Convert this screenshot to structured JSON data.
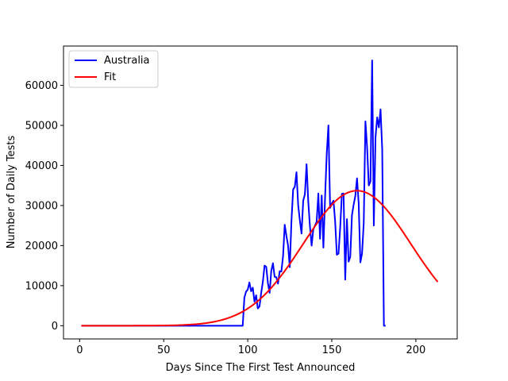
{
  "chart_data": {
    "type": "line",
    "xlabel": "Days Since The First Test Announced",
    "ylabel": "Number of Daily Tests",
    "xlim": [
      -9.6,
      224.6
    ],
    "ylim": [
      -3300,
      69800
    ],
    "xticks": [
      0,
      50,
      100,
      150,
      200
    ],
    "yticks": [
      0,
      10000,
      20000,
      30000,
      40000,
      50000,
      60000
    ],
    "grid": false,
    "legend_position": "top-left",
    "series": [
      {
        "name": "Australia",
        "color": "#0000ff",
        "points": [
          [
            1,
            0
          ],
          [
            50,
            0
          ],
          [
            97,
            0
          ],
          [
            98,
            7000
          ],
          [
            99,
            8500
          ],
          [
            100,
            9000
          ],
          [
            101,
            10800
          ],
          [
            102,
            8600
          ],
          [
            103,
            9500
          ],
          [
            104,
            6000
          ],
          [
            105,
            7600
          ],
          [
            106,
            4300
          ],
          [
            107,
            4800
          ],
          [
            108,
            8200
          ],
          [
            109,
            11000
          ],
          [
            110,
            15000
          ],
          [
            111,
            14700
          ],
          [
            112,
            10600
          ],
          [
            113,
            8200
          ],
          [
            114,
            13700
          ],
          [
            115,
            15600
          ],
          [
            116,
            12200
          ],
          [
            117,
            12100
          ],
          [
            118,
            10500
          ],
          [
            119,
            13600
          ],
          [
            120,
            13500
          ],
          [
            121,
            17300
          ],
          [
            122,
            25200
          ],
          [
            123,
            22400
          ],
          [
            124,
            20000
          ],
          [
            125,
            14600
          ],
          [
            126,
            26100
          ],
          [
            127,
            34000
          ],
          [
            128,
            34700
          ],
          [
            129,
            38300
          ],
          [
            130,
            30100
          ],
          [
            131,
            26300
          ],
          [
            132,
            23000
          ],
          [
            133,
            31200
          ],
          [
            134,
            32800
          ],
          [
            135,
            40300
          ],
          [
            136,
            31000
          ],
          [
            137,
            24800
          ],
          [
            138,
            20000
          ],
          [
            139,
            24000
          ],
          [
            140,
            25000
          ],
          [
            141,
            26000
          ],
          [
            142,
            33000
          ],
          [
            143,
            21700
          ],
          [
            144,
            32500
          ],
          [
            145,
            19500
          ],
          [
            146,
            32000
          ],
          [
            147,
            43000
          ],
          [
            148,
            50000
          ],
          [
            149,
            29400
          ],
          [
            150,
            30500
          ],
          [
            151,
            31200
          ],
          [
            152,
            26000
          ],
          [
            153,
            17700
          ],
          [
            154,
            18000
          ],
          [
            155,
            24500
          ],
          [
            156,
            32900
          ],
          [
            157,
            33000
          ],
          [
            158,
            11500
          ],
          [
            159,
            26600
          ],
          [
            160,
            16000
          ],
          [
            161,
            17200
          ],
          [
            162,
            27600
          ],
          [
            163,
            30200
          ],
          [
            164,
            32400
          ],
          [
            165,
            36800
          ],
          [
            166,
            30500
          ],
          [
            167,
            15800
          ],
          [
            168,
            18000
          ],
          [
            169,
            25600
          ],
          [
            170,
            51000
          ],
          [
            171,
            44600
          ],
          [
            172,
            35000
          ],
          [
            173,
            36000
          ],
          [
            174,
            66200
          ],
          [
            175,
            25000
          ],
          [
            176,
            47000
          ],
          [
            177,
            52000
          ],
          [
            178,
            49500
          ],
          [
            179,
            54000
          ],
          [
            180,
            44000
          ],
          [
            181,
            0
          ],
          [
            182,
            0
          ]
        ]
      },
      {
        "name": "Fit",
        "color": "#ff0000",
        "model": {
          "form": "gaussian",
          "amplitude": 33700,
          "center": 165,
          "sigma": 32
        },
        "x_range": [
          1,
          213
        ]
      }
    ]
  }
}
